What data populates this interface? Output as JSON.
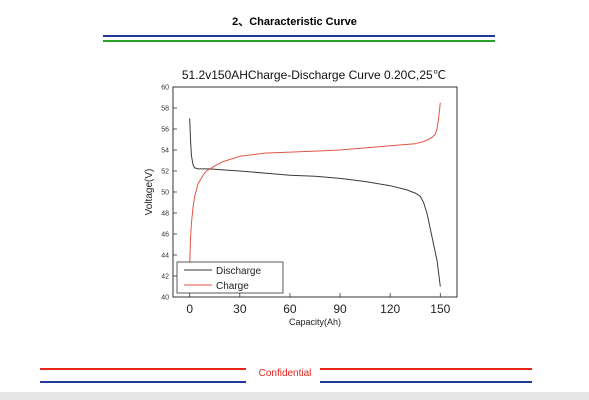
{
  "header": {
    "title": "2、Characteristic Curve"
  },
  "footer": {
    "label": "Confidential"
  },
  "colors": {
    "blue_rule": "#1f3a9a",
    "green_rule": "#2aa22a",
    "red_rule": "#e8241b",
    "discharge": "#3a3a3a",
    "charge": "#e05545"
  },
  "chart_data": {
    "type": "line",
    "title": "51.2v150AHCharge-Discharge Curve 0.20C,25℃",
    "xlabel": "Capacity(Ah)",
    "ylabel": "Voltage(V)",
    "xlim": [
      -10,
      160
    ],
    "ylim": [
      40,
      60
    ],
    "xticks": [
      0,
      30,
      60,
      90,
      120,
      150
    ],
    "yticks": [
      40,
      42,
      44,
      46,
      48,
      50,
      52,
      54,
      56,
      58,
      60
    ],
    "grid": false,
    "legend": "bottom-left",
    "series": [
      {
        "name": "Discharge",
        "color": "#3a3a3a",
        "x": [
          0,
          0.5,
          1,
          2,
          3,
          5,
          8,
          12,
          20,
          30,
          45,
          60,
          75,
          90,
          105,
          120,
          130,
          135,
          138,
          140,
          142,
          144,
          146,
          148,
          149,
          150
        ],
        "y": [
          57,
          55,
          53.5,
          52.6,
          52.3,
          52.2,
          52.2,
          52.2,
          52.1,
          52.0,
          51.8,
          51.6,
          51.5,
          51.3,
          51.0,
          50.6,
          50.2,
          49.9,
          49.6,
          49.0,
          48.0,
          46.5,
          45.0,
          43.5,
          42.3,
          41
        ]
      },
      {
        "name": "Charge",
        "color": "#e05545",
        "x": [
          0,
          0.5,
          1,
          2,
          3,
          5,
          8,
          10,
          12,
          15,
          20,
          30,
          45,
          60,
          75,
          90,
          105,
          120,
          135,
          140,
          143,
          145,
          147,
          148,
          149,
          150
        ],
        "y": [
          43,
          45.5,
          47,
          48.5,
          49.6,
          50.8,
          51.6,
          52.0,
          52.2,
          52.5,
          52.9,
          53.4,
          53.7,
          53.8,
          53.9,
          54.0,
          54.2,
          54.4,
          54.6,
          54.8,
          55.0,
          55.2,
          55.5,
          56,
          57,
          58.5
        ]
      }
    ]
  }
}
